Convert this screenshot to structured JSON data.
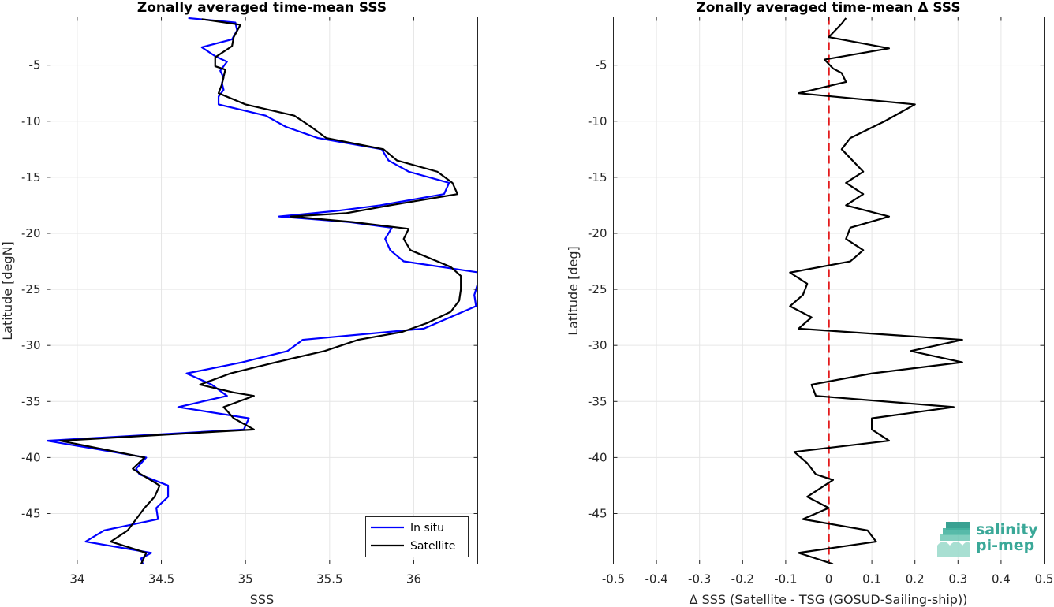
{
  "colors": {
    "in_situ": "#0000ff",
    "satellite": "#000000",
    "delta": "#000000",
    "zero_line": "#e41a1c",
    "logo": "#3aa898"
  },
  "logo": {
    "name": "salinity-pi-mep-logo",
    "line1": "salinity",
    "line2": "pi-mep"
  },
  "chart_data": [
    {
      "type": "line",
      "title": "Zonally averaged time-mean SSS",
      "xlabel": "SSS",
      "ylabel": "Latitude [degN]",
      "xlim": [
        33.82,
        36.38
      ],
      "ylim": [
        -49.5,
        -0.7
      ],
      "xticks": [
        34,
        34.5,
        35,
        35.5,
        36
      ],
      "yticks": [
        -5,
        -10,
        -15,
        -20,
        -25,
        -30,
        -35,
        -40,
        -45
      ],
      "grid": true,
      "legend": "bottom-right",
      "series": [
        {
          "name": "In situ",
          "color": "#0000ff",
          "points": [
            [
              34.66,
              -0.8
            ],
            [
              34.94,
              -1.2
            ],
            [
              34.95,
              -1.9
            ],
            [
              34.92,
              -2.7
            ],
            [
              34.74,
              -3.4
            ],
            [
              34.82,
              -4.2
            ],
            [
              34.89,
              -4.7
            ],
            [
              34.85,
              -5.5
            ],
            [
              34.87,
              -6.1
            ],
            [
              34.86,
              -6.6
            ],
            [
              34.87,
              -7.2
            ],
            [
              34.84,
              -7.8
            ],
            [
              34.84,
              -8.5
            ],
            [
              35.12,
              -9.5
            ],
            [
              35.24,
              -10.5
            ],
            [
              35.43,
              -11.5
            ],
            [
              35.81,
              -12.5
            ],
            [
              35.85,
              -13.5
            ],
            [
              35.97,
              -14.5
            ],
            [
              36.21,
              -15.5
            ],
            [
              36.18,
              -16.5
            ],
            [
              35.8,
              -17.5
            ],
            [
              35.54,
              -18.0
            ],
            [
              35.2,
              -18.5
            ],
            [
              35.62,
              -19.0
            ],
            [
              35.87,
              -19.5
            ],
            [
              35.83,
              -20.5
            ],
            [
              35.86,
              -21.5
            ],
            [
              35.94,
              -22.5
            ],
            [
              36.39,
              -23.5
            ],
            [
              36.38,
              -24.5
            ],
            [
              36.36,
              -25.5
            ],
            [
              36.37,
              -26.5
            ],
            [
              36.06,
              -28.5
            ],
            [
              35.34,
              -29.5
            ],
            [
              35.25,
              -30.5
            ],
            [
              34.98,
              -31.5
            ],
            [
              34.65,
              -32.5
            ],
            [
              34.8,
              -33.5
            ],
            [
              34.89,
              -34.5
            ],
            [
              34.6,
              -35.5
            ],
            [
              35.02,
              -36.5
            ],
            [
              34.99,
              -37.5
            ],
            [
              33.82,
              -38.5
            ],
            [
              34.41,
              -40.0
            ],
            [
              34.35,
              -41.0
            ],
            [
              34.37,
              -41.5
            ],
            [
              34.54,
              -42.5
            ],
            [
              34.54,
              -43.5
            ],
            [
              34.47,
              -44.5
            ],
            [
              34.48,
              -45.5
            ],
            [
              34.16,
              -46.5
            ],
            [
              34.05,
              -47.5
            ],
            [
              34.44,
              -48.5
            ],
            [
              34.38,
              -49.0
            ],
            [
              34.39,
              -49.5
            ]
          ]
        },
        {
          "name": "Satellite",
          "color": "#000000",
          "points": [
            [
              34.74,
              -0.9
            ],
            [
              34.97,
              -1.4
            ],
            [
              34.93,
              -2.5
            ],
            [
              34.92,
              -3.3
            ],
            [
              34.82,
              -4.3
            ],
            [
              34.82,
              -5.1
            ],
            [
              34.88,
              -5.4
            ],
            [
              34.86,
              -6.7
            ],
            [
              34.84,
              -7.5
            ],
            [
              35.0,
              -8.5
            ],
            [
              35.29,
              -9.5
            ],
            [
              35.39,
              -10.5
            ],
            [
              35.48,
              -11.5
            ],
            [
              35.82,
              -12.5
            ],
            [
              35.9,
              -13.5
            ],
            [
              36.14,
              -14.5
            ],
            [
              36.23,
              -15.5
            ],
            [
              36.26,
              -16.5
            ],
            [
              35.86,
              -17.5
            ],
            [
              35.6,
              -18.2
            ],
            [
              35.27,
              -18.5
            ],
            [
              35.64,
              -19.0
            ],
            [
              35.97,
              -19.6
            ],
            [
              35.94,
              -20.5
            ],
            [
              35.98,
              -21.5
            ],
            [
              36.22,
              -23.0
            ],
            [
              36.28,
              -23.8
            ],
            [
              36.28,
              -25.0
            ],
            [
              36.27,
              -26.0
            ],
            [
              36.22,
              -27.0
            ],
            [
              36.08,
              -28.0
            ],
            [
              35.93,
              -28.8
            ],
            [
              35.67,
              -29.5
            ],
            [
              35.47,
              -30.5
            ],
            [
              35.18,
              -31.5
            ],
            [
              34.91,
              -32.5
            ],
            [
              34.73,
              -33.5
            ],
            [
              34.93,
              -34.2
            ],
            [
              35.05,
              -34.5
            ],
            [
              34.87,
              -35.5
            ],
            [
              34.93,
              -36.5
            ],
            [
              35.05,
              -37.5
            ],
            [
              33.9,
              -38.5
            ],
            [
              34.4,
              -40.0
            ],
            [
              34.33,
              -41.0
            ],
            [
              34.38,
              -41.5
            ],
            [
              34.49,
              -42.5
            ],
            [
              34.46,
              -43.5
            ],
            [
              34.4,
              -44.5
            ],
            [
              34.35,
              -45.5
            ],
            [
              34.3,
              -46.5
            ],
            [
              34.2,
              -47.5
            ],
            [
              34.41,
              -48.5
            ],
            [
              34.38,
              -49.5
            ]
          ]
        }
      ]
    },
    {
      "type": "line",
      "title": "Zonally averaged time-mean Δ SSS",
      "xlabel": "Δ SSS (Satellite - TSG (GOSUD-Sailing-ship))",
      "ylabel": "Latitude [deg]",
      "xlim": [
        -0.5,
        0.5
      ],
      "ylim": [
        -49.5,
        -0.7
      ],
      "xticks": [
        -0.5,
        -0.4,
        -0.3,
        -0.2,
        -0.1,
        0,
        0.1,
        0.2,
        0.3,
        0.4,
        0.5
      ],
      "xtick_labels": [
        "-0.5",
        "-0.4",
        "-0.3",
        "-0.2",
        "-0.1",
        "0",
        "0.1",
        "0.2",
        "0.3",
        "0.4",
        "0.5"
      ],
      "yticks": [
        -5,
        -10,
        -15,
        -20,
        -25,
        -30,
        -35,
        -40,
        -45
      ],
      "grid": true,
      "zero_line": {
        "x": 0,
        "style": "dashed",
        "color": "#e41a1c"
      },
      "series": [
        {
          "color": "#000000",
          "points": [
            [
              0.04,
              -0.8
            ],
            [
              0.03,
              -1.3
            ],
            [
              0.0,
              -2.5
            ],
            [
              0.14,
              -3.5
            ],
            [
              -0.01,
              -4.5
            ],
            [
              0.01,
              -5.3
            ],
            [
              0.03,
              -5.7
            ],
            [
              0.04,
              -6.5
            ],
            [
              -0.07,
              -7.5
            ],
            [
              0.2,
              -8.5
            ],
            [
              0.13,
              -10.0
            ],
            [
              0.05,
              -11.5
            ],
            [
              0.03,
              -12.5
            ],
            [
              0.08,
              -14.5
            ],
            [
              0.04,
              -15.5
            ],
            [
              0.08,
              -16.5
            ],
            [
              0.04,
              -17.5
            ],
            [
              0.14,
              -18.5
            ],
            [
              0.05,
              -19.5
            ],
            [
              0.04,
              -20.5
            ],
            [
              0.08,
              -21.5
            ],
            [
              0.05,
              -22.5
            ],
            [
              -0.09,
              -23.5
            ],
            [
              -0.05,
              -24.5
            ],
            [
              -0.06,
              -25.5
            ],
            [
              -0.09,
              -26.5
            ],
            [
              -0.04,
              -27.5
            ],
            [
              -0.07,
              -28.5
            ],
            [
              0.31,
              -29.5
            ],
            [
              0.19,
              -30.5
            ],
            [
              0.31,
              -31.5
            ],
            [
              0.1,
              -32.5
            ],
            [
              -0.04,
              -33.5
            ],
            [
              -0.03,
              -34.5
            ],
            [
              0.29,
              -35.5
            ],
            [
              0.1,
              -36.5
            ],
            [
              0.1,
              -37.5
            ],
            [
              0.14,
              -38.5
            ],
            [
              -0.08,
              -39.5
            ],
            [
              -0.05,
              -40.5
            ],
            [
              -0.03,
              -41.5
            ],
            [
              0.01,
              -42.0
            ],
            [
              -0.05,
              -43.5
            ],
            [
              0.0,
              -44.5
            ],
            [
              -0.06,
              -45.5
            ],
            [
              0.09,
              -46.5
            ],
            [
              0.11,
              -47.5
            ],
            [
              -0.07,
              -48.5
            ],
            [
              0.01,
              -49.5
            ]
          ]
        }
      ]
    }
  ],
  "legend": {
    "items": [
      {
        "label": "In situ",
        "color": "#0000ff"
      },
      {
        "label": "Satellite",
        "color": "#000000"
      }
    ]
  }
}
